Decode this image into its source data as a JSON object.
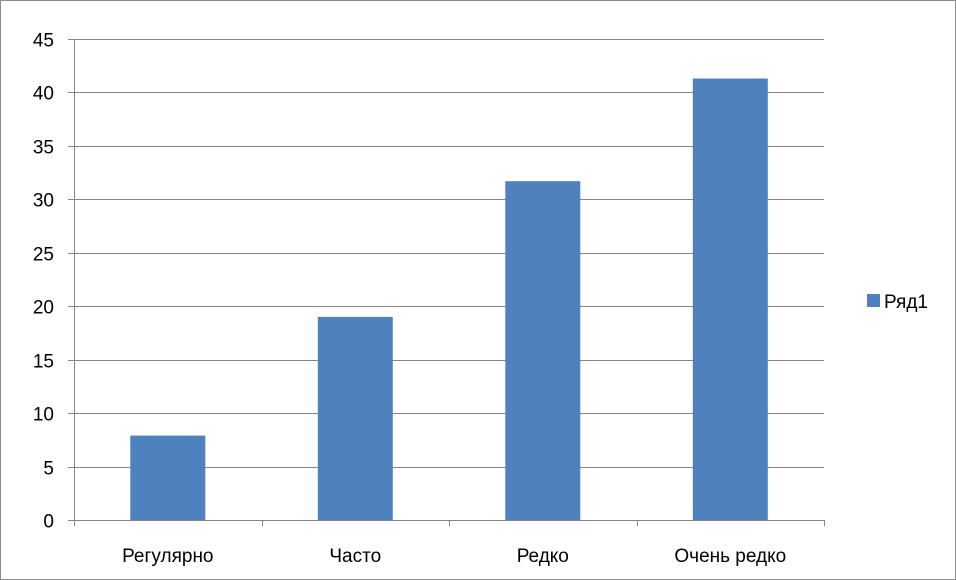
{
  "chart_data": {
    "type": "bar",
    "title": "",
    "xlabel": "",
    "ylabel": "",
    "categories": [
      "Регулярно",
      "Часто",
      "Редко",
      "Очень редко"
    ],
    "series": [
      {
        "name": "Ряд1",
        "values": [
          7.9,
          19,
          31.7,
          41.3
        ],
        "color": "#4f81bd"
      }
    ],
    "ylim": [
      0,
      45
    ],
    "yticks": [
      0,
      5,
      10,
      15,
      20,
      25,
      30,
      35,
      40,
      45
    ],
    "grid": true,
    "legend_position": "right",
    "colors": {
      "gridline": "#868686",
      "axis": "#868686",
      "border": "#8c8c8c"
    }
  }
}
